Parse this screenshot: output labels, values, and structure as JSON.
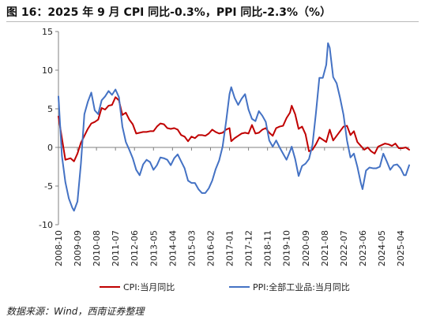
{
  "title": "图 16：2025 年 9 月 CPI 同比-0.3%，PPI 同比-2.3%（%）",
  "source": "数据来源：Wind，西南证券整理",
  "chart_data": {
    "type": "line",
    "title": "图 16：2025 年 9 月 CPI 同比-0.3%，PPI 同比-2.3%（%）",
    "xlabel": "",
    "ylabel": "",
    "ylim": [
      -10,
      15
    ],
    "yticks": [
      -10,
      -5,
      0,
      5,
      10,
      15
    ],
    "x_start": "2008-10",
    "x_end": "2025-09",
    "xticks": [
      "2008-10",
      "2009-09",
      "2010-08",
      "2011-07",
      "2012-06",
      "2013-05",
      "2014-04",
      "2015-03",
      "2016-02",
      "2017-01",
      "2017-12",
      "2018-11",
      "2019-10",
      "2020-09",
      "2021-08",
      "2022-07",
      "2023-06",
      "2024-05",
      "2025-04"
    ],
    "grid": false,
    "legend_position": "bottom",
    "series": [
      {
        "name": "CPI:当月同比",
        "color": "#c00000",
        "points": [
          [
            "2008-10",
            4.0
          ],
          [
            "2008-12",
            1.2
          ],
          [
            "2009-02",
            -1.6
          ],
          [
            "2009-05",
            -1.4
          ],
          [
            "2009-07",
            -1.8
          ],
          [
            "2009-09",
            -0.8
          ],
          [
            "2009-11",
            0.6
          ],
          [
            "2010-01",
            1.5
          ],
          [
            "2010-03",
            2.4
          ],
          [
            "2010-05",
            3.1
          ],
          [
            "2010-07",
            3.3
          ],
          [
            "2010-09",
            3.6
          ],
          [
            "2010-11",
            5.1
          ],
          [
            "2011-01",
            4.9
          ],
          [
            "2011-03",
            5.4
          ],
          [
            "2011-05",
            5.5
          ],
          [
            "2011-07",
            6.5
          ],
          [
            "2011-09",
            6.1
          ],
          [
            "2011-11",
            4.2
          ],
          [
            "2012-01",
            4.5
          ],
          [
            "2012-03",
            3.6
          ],
          [
            "2012-05",
            3.0
          ],
          [
            "2012-07",
            1.8
          ],
          [
            "2012-09",
            1.9
          ],
          [
            "2012-11",
            2.0
          ],
          [
            "2013-01",
            2.0
          ],
          [
            "2013-03",
            2.1
          ],
          [
            "2013-05",
            2.1
          ],
          [
            "2013-07",
            2.7
          ],
          [
            "2013-09",
            3.1
          ],
          [
            "2013-11",
            3.0
          ],
          [
            "2014-01",
            2.5
          ],
          [
            "2014-03",
            2.4
          ],
          [
            "2014-05",
            2.5
          ],
          [
            "2014-07",
            2.3
          ],
          [
            "2014-09",
            1.6
          ],
          [
            "2014-11",
            1.4
          ],
          [
            "2015-01",
            0.8
          ],
          [
            "2015-03",
            1.4
          ],
          [
            "2015-05",
            1.2
          ],
          [
            "2015-07",
            1.6
          ],
          [
            "2015-09",
            1.6
          ],
          [
            "2015-11",
            1.5
          ],
          [
            "2016-01",
            1.8
          ],
          [
            "2016-03",
            2.3
          ],
          [
            "2016-05",
            2.0
          ],
          [
            "2016-07",
            1.8
          ],
          [
            "2016-09",
            1.9
          ],
          [
            "2016-11",
            2.3
          ],
          [
            "2017-01",
            2.5
          ],
          [
            "2017-02",
            0.8
          ],
          [
            "2017-04",
            1.2
          ],
          [
            "2017-06",
            1.5
          ],
          [
            "2017-08",
            1.8
          ],
          [
            "2017-10",
            1.9
          ],
          [
            "2017-12",
            1.8
          ],
          [
            "2018-02",
            2.9
          ],
          [
            "2018-04",
            1.8
          ],
          [
            "2018-06",
            1.9
          ],
          [
            "2018-08",
            2.3
          ],
          [
            "2018-10",
            2.5
          ],
          [
            "2018-12",
            1.9
          ],
          [
            "2019-02",
            1.5
          ],
          [
            "2019-04",
            2.5
          ],
          [
            "2019-06",
            2.7
          ],
          [
            "2019-08",
            2.8
          ],
          [
            "2019-10",
            3.8
          ],
          [
            "2019-12",
            4.5
          ],
          [
            "2020-01",
            5.4
          ],
          [
            "2020-03",
            4.3
          ],
          [
            "2020-05",
            2.4
          ],
          [
            "2020-07",
            2.7
          ],
          [
            "2020-09",
            1.7
          ],
          [
            "2020-11",
            -0.5
          ],
          [
            "2021-01",
            -0.3
          ],
          [
            "2021-03",
            0.4
          ],
          [
            "2021-05",
            1.3
          ],
          [
            "2021-07",
            1.0
          ],
          [
            "2021-09",
            0.7
          ],
          [
            "2021-11",
            2.3
          ],
          [
            "2022-01",
            0.9
          ],
          [
            "2022-03",
            1.5
          ],
          [
            "2022-05",
            2.1
          ],
          [
            "2022-07",
            2.7
          ],
          [
            "2022-09",
            2.8
          ],
          [
            "2022-11",
            1.6
          ],
          [
            "2023-01",
            2.1
          ],
          [
            "2023-03",
            0.7
          ],
          [
            "2023-05",
            0.2
          ],
          [
            "2023-07",
            -0.3
          ],
          [
            "2023-09",
            0.0
          ],
          [
            "2023-11",
            -0.5
          ],
          [
            "2024-01",
            -0.8
          ],
          [
            "2024-03",
            0.1
          ],
          [
            "2024-05",
            0.3
          ],
          [
            "2024-07",
            0.5
          ],
          [
            "2024-09",
            0.4
          ],
          [
            "2024-11",
            0.2
          ],
          [
            "2025-01",
            0.5
          ],
          [
            "2025-03",
            -0.1
          ],
          [
            "2025-05",
            -0.1
          ],
          [
            "2025-07",
            0.0
          ],
          [
            "2025-09",
            -0.3
          ]
        ]
      },
      {
        "name": "PPI:全部工业品:当月同比",
        "color": "#4472c4",
        "points": [
          [
            "2008-10",
            6.6
          ],
          [
            "2008-12",
            -1.1
          ],
          [
            "2009-02",
            -4.5
          ],
          [
            "2009-04",
            -6.6
          ],
          [
            "2009-06",
            -7.8
          ],
          [
            "2009-07",
            -8.2
          ],
          [
            "2009-09",
            -7.0
          ],
          [
            "2009-11",
            -2.1
          ],
          [
            "2010-01",
            4.3
          ],
          [
            "2010-03",
            5.9
          ],
          [
            "2010-05",
            7.1
          ],
          [
            "2010-07",
            4.8
          ],
          [
            "2010-09",
            4.3
          ],
          [
            "2010-11",
            6.1
          ],
          [
            "2011-01",
            6.6
          ],
          [
            "2011-03",
            7.3
          ],
          [
            "2011-05",
            6.8
          ],
          [
            "2011-07",
            7.5
          ],
          [
            "2011-09",
            6.5
          ],
          [
            "2011-11",
            2.7
          ],
          [
            "2012-01",
            0.7
          ],
          [
            "2012-03",
            -0.3
          ],
          [
            "2012-05",
            -1.4
          ],
          [
            "2012-07",
            -2.9
          ],
          [
            "2012-09",
            -3.6
          ],
          [
            "2012-11",
            -2.2
          ],
          [
            "2013-01",
            -1.6
          ],
          [
            "2013-03",
            -1.9
          ],
          [
            "2013-05",
            -2.9
          ],
          [
            "2013-07",
            -2.3
          ],
          [
            "2013-09",
            -1.3
          ],
          [
            "2013-11",
            -1.4
          ],
          [
            "2014-01",
            -1.6
          ],
          [
            "2014-03",
            -2.3
          ],
          [
            "2014-05",
            -1.4
          ],
          [
            "2014-07",
            -0.9
          ],
          [
            "2014-09",
            -1.8
          ],
          [
            "2014-11",
            -2.7
          ],
          [
            "2015-01",
            -4.3
          ],
          [
            "2015-03",
            -4.6
          ],
          [
            "2015-05",
            -4.6
          ],
          [
            "2015-07",
            -5.4
          ],
          [
            "2015-09",
            -5.9
          ],
          [
            "2015-11",
            -5.9
          ],
          [
            "2016-01",
            -5.3
          ],
          [
            "2016-03",
            -4.3
          ],
          [
            "2016-05",
            -2.8
          ],
          [
            "2016-07",
            -1.7
          ],
          [
            "2016-09",
            0.1
          ],
          [
            "2016-11",
            3.3
          ],
          [
            "2017-01",
            6.9
          ],
          [
            "2017-02",
            7.8
          ],
          [
            "2017-04",
            6.4
          ],
          [
            "2017-06",
            5.5
          ],
          [
            "2017-08",
            6.3
          ],
          [
            "2017-10",
            6.9
          ],
          [
            "2017-12",
            4.9
          ],
          [
            "2018-02",
            3.7
          ],
          [
            "2018-04",
            3.4
          ],
          [
            "2018-06",
            4.7
          ],
          [
            "2018-08",
            4.1
          ],
          [
            "2018-10",
            3.3
          ],
          [
            "2018-12",
            0.9
          ],
          [
            "2019-02",
            0.1
          ],
          [
            "2019-04",
            0.9
          ],
          [
            "2019-06",
            0.0
          ],
          [
            "2019-08",
            -0.8
          ],
          [
            "2019-10",
            -1.6
          ],
          [
            "2019-12",
            -0.5
          ],
          [
            "2020-01",
            0.1
          ],
          [
            "2020-03",
            -1.5
          ],
          [
            "2020-05",
            -3.7
          ],
          [
            "2020-07",
            -2.4
          ],
          [
            "2020-09",
            -2.1
          ],
          [
            "2020-11",
            -1.5
          ],
          [
            "2021-01",
            0.3
          ],
          [
            "2021-03",
            4.4
          ],
          [
            "2021-05",
            9.0
          ],
          [
            "2021-07",
            9.0
          ],
          [
            "2021-09",
            10.7
          ],
          [
            "2021-10",
            13.5
          ],
          [
            "2021-11",
            12.9
          ],
          [
            "2022-01",
            9.1
          ],
          [
            "2022-03",
            8.3
          ],
          [
            "2022-05",
            6.4
          ],
          [
            "2022-07",
            4.2
          ],
          [
            "2022-09",
            0.9
          ],
          [
            "2022-11",
            -1.3
          ],
          [
            "2023-01",
            -0.8
          ],
          [
            "2023-03",
            -2.5
          ],
          [
            "2023-05",
            -4.6
          ],
          [
            "2023-06",
            -5.4
          ],
          [
            "2023-08",
            -3.0
          ],
          [
            "2023-10",
            -2.6
          ],
          [
            "2023-12",
            -2.7
          ],
          [
            "2024-02",
            -2.7
          ],
          [
            "2024-04",
            -2.5
          ],
          [
            "2024-06",
            -0.8
          ],
          [
            "2024-08",
            -1.8
          ],
          [
            "2024-10",
            -2.9
          ],
          [
            "2024-12",
            -2.3
          ],
          [
            "2025-02",
            -2.2
          ],
          [
            "2025-04",
            -2.7
          ],
          [
            "2025-06",
            -3.6
          ],
          [
            "2025-07",
            -3.6
          ],
          [
            "2025-09",
            -2.3
          ]
        ]
      }
    ]
  }
}
